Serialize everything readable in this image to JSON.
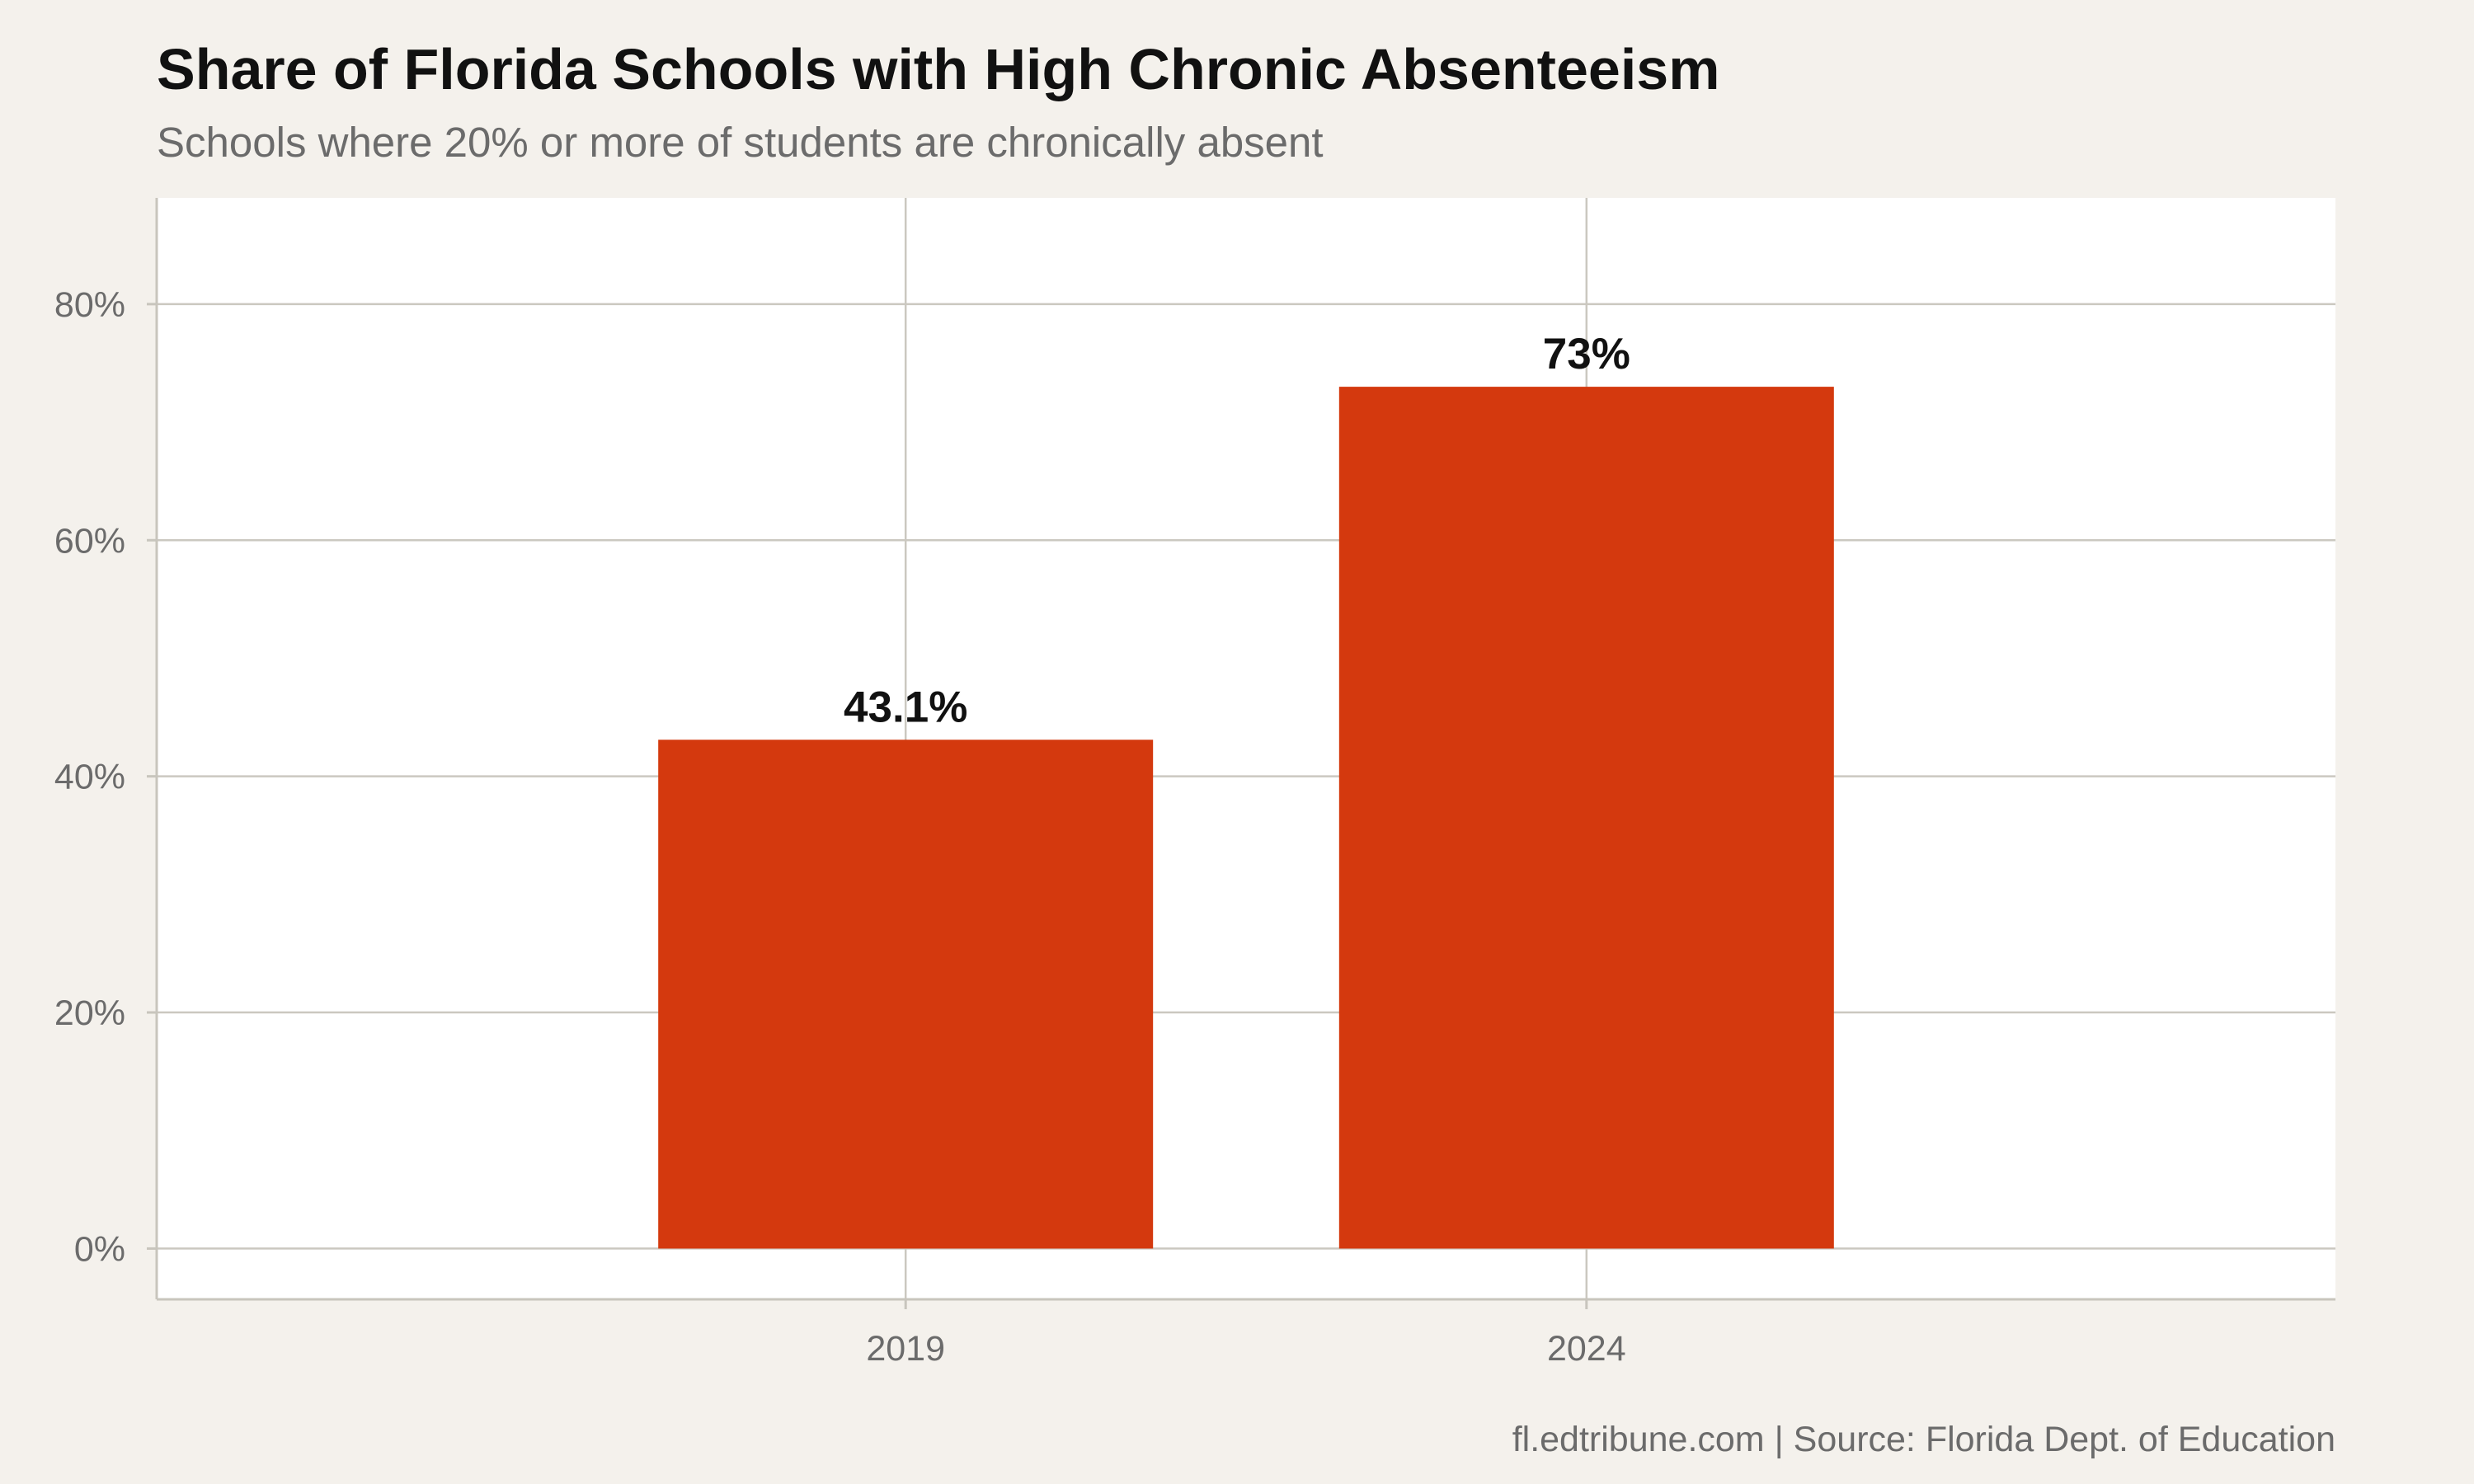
{
  "chart_data": {
    "type": "bar",
    "title": "Share of Florida Schools with High Chronic Absenteeism",
    "subtitle": "Schools where 20% or more of students are chronically absent",
    "categories": [
      "2019",
      "2024"
    ],
    "values": [
      43.1,
      73
    ],
    "data_labels": [
      "43.1%",
      "73%"
    ],
    "xlabel": "",
    "ylabel": "",
    "ylim": [
      -4.3,
      89
    ],
    "y_ticks": [
      0,
      20,
      40,
      60,
      80
    ],
    "y_tick_labels": [
      "0%",
      "20%",
      "40%",
      "60%",
      "80%"
    ],
    "grid": true,
    "legend": "none",
    "caption": "fl.edtribune.com | Source: Florida Dept. of Education",
    "colors": {
      "bar": "#d4390e",
      "panel": "#ffffff",
      "background": "#f4f1ec",
      "grid": "#cbc8c0",
      "axis": "#c8c5bd"
    }
  }
}
